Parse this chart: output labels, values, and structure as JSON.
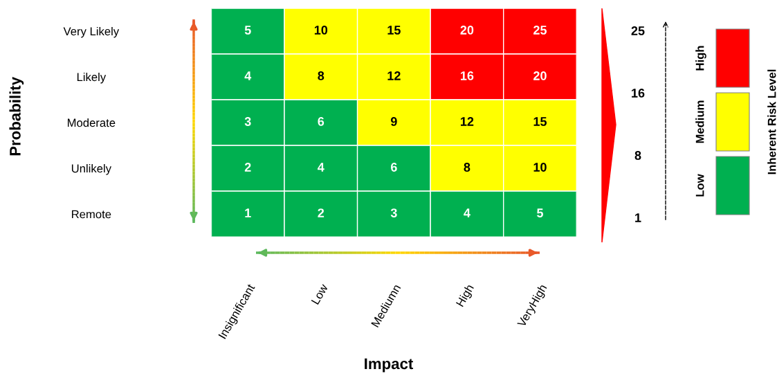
{
  "chart_data": {
    "type": "heatmap",
    "xlabel": "Impact",
    "ylabel": "Probability",
    "categories": [
      "Insignificant",
      "Low",
      "Mediumn",
      "High",
      "VeryHigh"
    ],
    "y_categories": [
      "Very Likely",
      "Likely",
      "Moderate",
      "Unlikely",
      "Remote"
    ],
    "cells": [
      [
        5,
        10,
        15,
        20,
        25
      ],
      [
        4,
        8,
        12,
        16,
        20
      ],
      [
        3,
        6,
        9,
        12,
        15
      ],
      [
        2,
        4,
        6,
        8,
        10
      ],
      [
        1,
        2,
        3,
        4,
        5
      ]
    ],
    "colors": [
      [
        "#00b050",
        "#ffff00",
        "#ffff00",
        "#ff0000",
        "#ff0000"
      ],
      [
        "#00b050",
        "#ffff00",
        "#ffff00",
        "#ff0000",
        "#ff0000"
      ],
      [
        "#00b050",
        "#00b050",
        "#ffff00",
        "#ffff00",
        "#ffff00"
      ],
      [
        "#00b050",
        "#00b050",
        "#00b050",
        "#ffff00",
        "#ffff00"
      ],
      [
        "#00b050",
        "#00b050",
        "#00b050",
        "#00b050",
        "#00b050"
      ]
    ],
    "annotations": [
      "25",
      "16",
      "8",
      "1",
      "High",
      "Medium",
      "Low",
      "Inherent Risk Level"
    ],
    "data_labels": true
  }
}
